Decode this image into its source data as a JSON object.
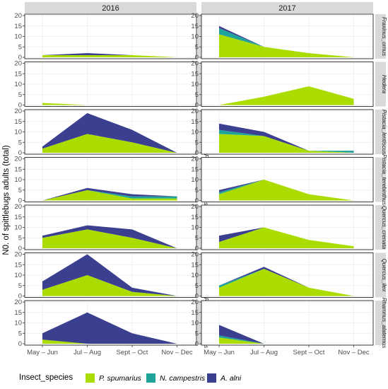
{
  "chart_data": {
    "type": "area",
    "stacked": true,
    "ylabel": "N0. of spittlebugs adults (total)",
    "xlabel": "",
    "grid": true,
    "legend_placement": "bottom",
    "legend_title": "Insect_species",
    "categories": [
      "May – Jun",
      "Jul – Aug",
      "Sept – Oct",
      "Nov – Dec"
    ],
    "columns": [
      "2016",
      "2017"
    ],
    "series": [
      {
        "name": "P. spumarius",
        "color": "#aadc00"
      },
      {
        "name": "N. campestris",
        "color": "#20a39a"
      },
      {
        "name": "A. alni",
        "color": "#3b3f8f"
      }
    ],
    "panels": [
      {
        "row": "Fraxinus_ornus",
        "2016": {
          "P. spumarius": [
            1,
            1,
            1,
            0
          ],
          "N. campestris": [
            0,
            0,
            0,
            0
          ],
          "A. alni": [
            0,
            1,
            0,
            0
          ]
        },
        "2017": {
          "P. spumarius": [
            11,
            5,
            2,
            0
          ],
          "N. campestris": [
            3,
            0,
            0,
            0
          ],
          "A. alni": [
            1,
            0,
            0,
            0
          ]
        }
      },
      {
        "row": "Hedera",
        "2016": {
          "P. spumarius": [
            1,
            0,
            null,
            null
          ],
          "N. campestris": [
            0,
            0,
            null,
            null
          ],
          "A. alni": [
            0,
            0,
            null,
            null
          ]
        },
        "2017": {
          "P. spumarius": [
            0,
            4,
            9,
            3
          ],
          "N. campestris": [
            0,
            0,
            0,
            0
          ],
          "A. alni": [
            0,
            0,
            0,
            0
          ]
        }
      },
      {
        "row": "Pistacia_lentiscus",
        "2016": {
          "P. spumarius": [
            2,
            9,
            5,
            0
          ],
          "N. campestris": [
            0,
            0,
            0,
            0
          ],
          "A. alni": [
            1,
            10,
            6,
            0
          ]
        },
        "2017": {
          "P. spumarius": [
            9,
            8,
            1,
            0
          ],
          "N. campestris": [
            2,
            0,
            0,
            1
          ],
          "A. alni": [
            3,
            2,
            0,
            0
          ]
        }
      },
      {
        "row": "Pistacia_terebinthus",
        "2016": {
          "P. spumarius": [
            0,
            5,
            1,
            1
          ],
          "N. campestris": [
            0,
            0,
            1,
            1
          ],
          "A. alni": [
            0,
            1,
            1,
            0
          ]
        },
        "2017": {
          "P. spumarius": [
            3,
            10,
            3,
            0
          ],
          "N. campestris": [
            1,
            0,
            0,
            0
          ],
          "A. alni": [
            1,
            0,
            0,
            0
          ]
        }
      },
      {
        "row": "Quercus_crenata",
        "2016": {
          "P. spumarius": [
            5,
            9,
            5,
            0
          ],
          "N. campestris": [
            0,
            0,
            0,
            0
          ],
          "A. alni": [
            1,
            2,
            4,
            0
          ]
        },
        "2017": {
          "P. spumarius": [
            3,
            10,
            4,
            1
          ],
          "N. campestris": [
            0,
            0,
            0,
            0
          ],
          "A. alni": [
            3,
            0,
            0,
            0
          ]
        }
      },
      {
        "row": "Quercus_ilex",
        "2016": {
          "P. spumarius": [
            3,
            10,
            2,
            0
          ],
          "N. campestris": [
            0,
            0,
            0,
            0
          ],
          "A. alni": [
            4,
            10,
            2,
            0
          ]
        },
        "2017": {
          "P. spumarius": [
            4,
            13,
            4,
            0
          ],
          "N. campestris": [
            1,
            0,
            0,
            0
          ],
          "A. alni": [
            0,
            1,
            0,
            0
          ]
        }
      },
      {
        "row": "Rhamnus_alaternus",
        "2016": {
          "P. spumarius": [
            2,
            0,
            0,
            0
          ],
          "N. campestris": [
            0,
            0,
            0,
            0
          ],
          "A. alni": [
            3,
            15,
            5,
            0
          ]
        },
        "2017": {
          "P. spumarius": [
            3,
            0,
            null,
            null
          ],
          "N. campestris": [
            1,
            0,
            null,
            null
          ],
          "A. alni": [
            5,
            0,
            null,
            null
          ]
        }
      }
    ],
    "panel_ylim": [
      0,
      20
    ],
    "yticks": [
      0,
      5,
      10,
      15,
      20
    ]
  }
}
